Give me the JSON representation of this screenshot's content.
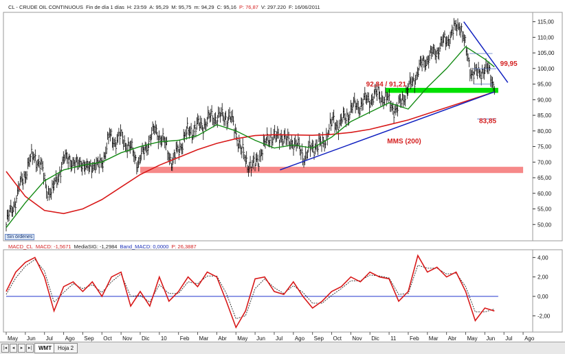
{
  "header": {
    "main": {
      "symbol": "CL - CRUDE OIL CONTINUOUS",
      "interval": "Fin de día 1 días",
      "hour": "H: 23:59",
      "open": "A: 95,29",
      "high": "M: 95,75",
      "low": "m: 94,29",
      "close": "C: 95,16",
      "change": "P: 76,87",
      "volume": "V: 297.220",
      "date": "F: 16/06/2011"
    },
    "macd": {
      "name": "MACD_CL",
      "macd": "MACD: -1,5671",
      "signal": "MediaSIG: -1,2984",
      "band": "Band_MACD: 0,0000",
      "pct": "P: 26,3887"
    }
  },
  "badge": "Sin órdenes",
  "tabs": {
    "first": "WMT",
    "second": "Hoja 2"
  },
  "colors": {
    "price": "#000000",
    "ma_green": "#138a13",
    "ma_red": "#d81818",
    "trend": "#1020c0",
    "macd": "#d81818",
    "signal": "#222222",
    "zero": "#2233cc",
    "support_zone": "#f47474",
    "resistance_zone": "#00e000",
    "annotation": "#d42020"
  },
  "chart_data": [
    {
      "type": "line",
      "title": "CL - CRUDE OIL CONTINUOUS",
      "ylim": [
        45,
        118
      ],
      "yticks": [
        50,
        55,
        60,
        65,
        70,
        75,
        80,
        85,
        90,
        95,
        100,
        105,
        110,
        115
      ],
      "ytick_labels": [
        "50,00",
        "55,00",
        "60,00",
        "65,00",
        "70,00",
        "75,00",
        "80,00",
        "85,00",
        "90,00",
        "95,00",
        "100,00",
        "105,00",
        "110,00",
        "115,00"
      ],
      "x_labels": [
        "May",
        "Jun",
        "Jul",
        "Ago",
        "Sep",
        "Oct",
        "Nov",
        "Dic",
        "10",
        "Feb",
        "Mar",
        "Abr",
        "May",
        "Jun",
        "Jul",
        "Ago",
        "Sep",
        "Oct",
        "Nov",
        "Dic",
        "11",
        "Feb",
        "Mar",
        "Abr",
        "May",
        "Jun",
        "Jul",
        "Ago"
      ],
      "x_months": [
        0,
        1,
        2,
        3,
        4,
        5,
        6,
        7,
        8,
        9,
        10,
        11,
        12,
        13,
        14,
        15,
        16,
        17,
        18,
        19,
        20,
        21,
        22,
        23,
        24,
        25,
        26,
        27
      ],
      "price_series": {
        "x": [
          0,
          0.3,
          0.6,
          0.9,
          1.2,
          1.5,
          1.8,
          2.1,
          2.4,
          2.7,
          3.0,
          3.3,
          3.6,
          3.9,
          4.2,
          4.5,
          4.8,
          5.1,
          5.4,
          5.7,
          6.0,
          6.3,
          6.6,
          6.9,
          7.2,
          7.5,
          7.8,
          8.1,
          8.4,
          8.7,
          9.0,
          9.3,
          9.6,
          9.9,
          10.2,
          10.5,
          10.8,
          11.1,
          11.4,
          11.7,
          12.0,
          12.3,
          12.6,
          12.9,
          13.2,
          13.5,
          13.8,
          14.1,
          14.4,
          14.7,
          15.0,
          15.3,
          15.6,
          15.9,
          16.2,
          16.5,
          16.8,
          17.1,
          17.4,
          17.7,
          18.0,
          18.3,
          18.6,
          18.9,
          19.2,
          19.5,
          19.8,
          20.1,
          20.4,
          20.7,
          21.0,
          21.3,
          21.6,
          21.9,
          22.2,
          22.5,
          22.8,
          23.1,
          23.4,
          23.7,
          24.0,
          24.3,
          24.6,
          24.9,
          25.2,
          25.5
        ],
        "values": [
          50,
          55,
          60,
          65,
          70,
          72,
          69,
          62,
          60,
          66,
          70,
          72,
          68,
          71,
          67,
          70,
          68,
          72,
          78,
          77,
          78,
          76,
          73,
          70,
          73,
          78,
          80,
          78,
          74,
          70,
          74,
          78,
          80,
          81,
          82,
          83,
          85,
          84,
          85,
          84,
          80,
          73,
          70,
          68,
          72,
          75,
          79,
          77,
          79,
          76,
          77,
          74,
          72,
          74,
          76,
          75,
          80,
          83,
          82,
          84,
          87,
          88,
          89,
          90,
          91,
          92,
          90,
          89,
          86,
          91,
          93,
          97,
          100,
          103,
          104,
          106,
          108,
          110,
          112,
          115,
          106,
          99,
          98,
          100,
          99,
          95
        ]
      },
      "ma_green": {
        "x": [
          0,
          1,
          2,
          3,
          4,
          5,
          6,
          7,
          8,
          9,
          10,
          11,
          12,
          13,
          14,
          15,
          16,
          17,
          18,
          19,
          20,
          21,
          22,
          23,
          24,
          25,
          25.5
        ],
        "values": [
          49,
          57,
          64,
          67.5,
          69,
          70,
          73,
          75,
          76.5,
          77,
          78.5,
          82,
          80,
          77,
          74.5,
          75.5,
          74.5,
          78,
          83,
          86,
          89,
          87,
          94,
          100,
          107,
          103,
          100.5
        ]
      },
      "ma_red": {
        "x": [
          0,
          1,
          2,
          3,
          4,
          5,
          6,
          7,
          8,
          9,
          10,
          11,
          12,
          13,
          14,
          15,
          16,
          17,
          18,
          19,
          20,
          21,
          22,
          23,
          24,
          25,
          25.5
        ],
        "values": [
          67,
          59,
          54.5,
          53.5,
          55,
          58,
          62,
          66,
          69,
          71.5,
          74,
          76,
          77.5,
          78.5,
          78.8,
          78.7,
          78.6,
          78.9,
          79.5,
          80.5,
          82,
          83.5,
          85.5,
          87.5,
          89.5,
          91.5,
          92.5
        ]
      },
      "trend_lines": [
        {
          "x": [
            14.3,
            25.5
          ],
          "values": [
            67.5,
            92.5
          ]
        },
        {
          "x": [
            23.9,
            26.2
          ],
          "values": [
            115,
            95.5
          ]
        },
        {
          "x": [
            24.2,
            25.4
          ],
          "values": [
            104.8,
            104.8
          ]
        },
        {
          "x": [
            24.4,
            25.6
          ],
          "values": [
            99.95,
            99.95
          ]
        },
        {
          "x": [
            24.4,
            25.4
          ],
          "values": [
            95,
            95
          ]
        }
      ],
      "zones": [
        {
          "x": [
            7,
            27
          ],
          "range": [
            66.5,
            68.5
          ],
          "label": ""
        },
        {
          "x": [
            19.8,
            25.7
          ],
          "range": [
            92.2,
            93.8
          ],
          "label": ""
        }
      ],
      "level_lines": [
        {
          "x": [
            24.6,
            25.6
          ],
          "value": 83.85
        }
      ],
      "annotations": [
        {
          "text": "92,84 / 91,21",
          "x": 18.8,
          "y": 94.2
        },
        {
          "text": "99,95",
          "x": 25.8,
          "y": 100.9
        },
        {
          "text": "83,85",
          "x": 24.7,
          "y": 82.5
        },
        {
          "text": "MMS (200)",
          "x": 19.9,
          "y": 76
        }
      ]
    },
    {
      "type": "line",
      "title": "MACD_CL",
      "ylim": [
        -3.6,
        4.8
      ],
      "yticks": [
        -2,
        0,
        2,
        4
      ],
      "ytick_labels": [
        "-2,00",
        "0,00",
        "2,00",
        "4,00"
      ],
      "zero_line": 0,
      "series": [
        {
          "name": "MACD",
          "x": [
            0,
            0.5,
            1,
            1.5,
            2,
            2.5,
            3,
            3.5,
            4,
            4.5,
            5,
            5.5,
            6,
            6.5,
            7,
            7.5,
            8,
            8.5,
            9,
            9.5,
            10,
            10.5,
            11,
            11.5,
            12,
            12.5,
            13,
            13.5,
            14,
            14.5,
            15,
            15.5,
            16,
            16.5,
            17,
            17.5,
            18,
            18.5,
            19,
            19.5,
            20,
            20.5,
            21,
            21.5,
            22,
            22.5,
            23,
            23.5,
            24,
            24.5,
            25,
            25.5
          ],
          "values": [
            0.5,
            2.5,
            3.5,
            4.0,
            2.0,
            -1.5,
            1.0,
            1.5,
            0.5,
            1.5,
            0.0,
            2.0,
            2.5,
            -1.0,
            0.5,
            -1.0,
            2.0,
            -0.5,
            0.5,
            2.0,
            1.0,
            2.5,
            2.0,
            -0.5,
            -3.2,
            -1.5,
            1.8,
            2.0,
            0.5,
            0.2,
            1.5,
            0.0,
            -1.2,
            -0.5,
            0.5,
            1.0,
            2.0,
            1.5,
            2.5,
            2.0,
            1.8,
            -0.5,
            0.5,
            4.2,
            2.5,
            3.0,
            2.0,
            2.5,
            0.5,
            -2.5,
            -1.2,
            -1.5
          ]
        },
        {
          "name": "MediaSIG",
          "x": [
            0,
            0.5,
            1,
            1.5,
            2,
            2.5,
            3,
            3.5,
            4,
            4.5,
            5,
            5.5,
            6,
            6.5,
            7,
            7.5,
            8,
            8.5,
            9,
            9.5,
            10,
            10.5,
            11,
            11.5,
            12,
            12.5,
            13,
            13.5,
            14,
            14.5,
            15,
            15.5,
            16,
            16.5,
            17,
            17.5,
            18,
            18.5,
            19,
            19.5,
            20,
            20.5,
            21,
            21.5,
            22,
            22.5,
            23,
            23.5,
            24,
            24.5,
            25,
            25.5
          ],
          "values": [
            0.2,
            1.9,
            3.1,
            3.8,
            2.6,
            -0.6,
            0.4,
            1.3,
            0.8,
            1.2,
            0.4,
            1.5,
            2.3,
            0.0,
            0.1,
            -0.6,
            1.2,
            0.3,
            0.3,
            1.5,
            1.3,
            2.1,
            2.1,
            0.3,
            -2.3,
            -2.0,
            0.8,
            1.8,
            0.9,
            0.3,
            1.1,
            0.4,
            -0.7,
            -0.7,
            0.1,
            0.8,
            1.6,
            1.6,
            2.2,
            2.1,
            1.9,
            0.2,
            0.3,
            3.2,
            2.9,
            2.9,
            2.3,
            2.4,
            1.0,
            -1.6,
            -1.6,
            -1.3
          ]
        }
      ]
    }
  ]
}
